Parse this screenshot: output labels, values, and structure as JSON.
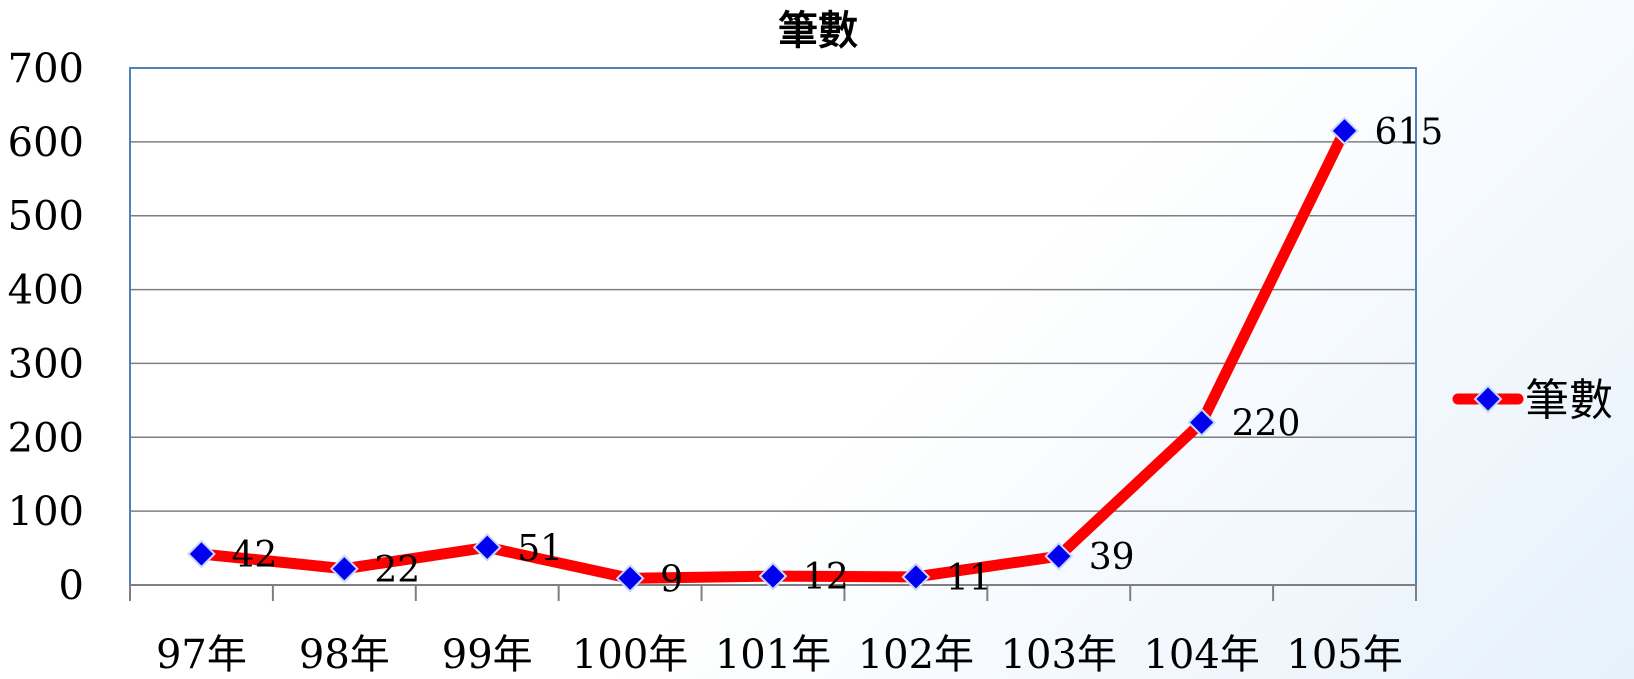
{
  "chart_data": {
    "type": "line",
    "title": "筆數",
    "categories": [
      "97年",
      "98年",
      "99年",
      "100年",
      "101年",
      "102年",
      "103年",
      "104年",
      "105年"
    ],
    "series": [
      {
        "name": "筆數",
        "values": [
          42,
          22,
          51,
          9,
          12,
          11,
          39,
          220,
          615
        ]
      }
    ],
    "ylim": [
      0,
      700
    ],
    "yticks": [
      0,
      100,
      200,
      300,
      400,
      500,
      600,
      700
    ],
    "grid": true,
    "legend": "right",
    "data_labels": true,
    "colors": {
      "line": "#ff0000",
      "marker": "#0000ee",
      "marker_edge": "#c8d8ff",
      "gridline": "#7f7f7f",
      "plot_border": "#4f81bd"
    },
    "marker": "diamond-icon"
  }
}
